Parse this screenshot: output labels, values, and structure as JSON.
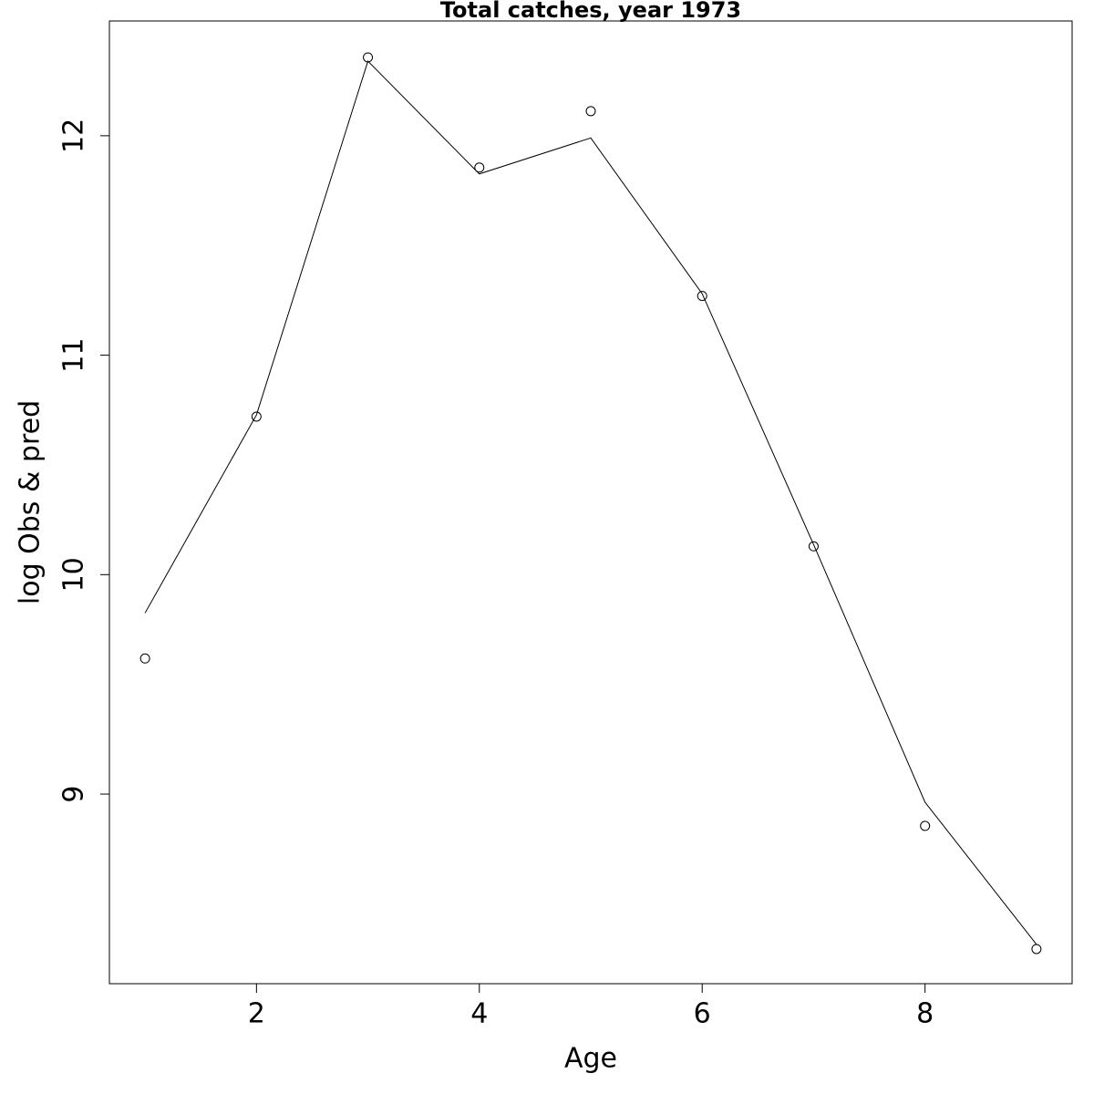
{
  "chart_data": {
    "type": "line",
    "title": "Total catches, year 1973",
    "xlabel": "Age",
    "ylabel": "log Obs & pred",
    "x": [
      1,
      2,
      3,
      4,
      5,
      6,
      7,
      8,
      9
    ],
    "series": [
      {
        "style": "points",
        "color": "#000000",
        "values": [
          9.618,
          10.72,
          12.357,
          11.855,
          12.112,
          11.27,
          10.129,
          8.855,
          8.294
        ]
      },
      {
        "style": "line",
        "color": "#000000",
        "values": [
          9.825,
          10.728,
          12.34,
          11.826,
          11.99,
          11.28,
          10.137,
          8.963,
          8.315
        ]
      }
    ],
    "xlim": [
      0.68,
      9.32
    ],
    "ylim": [
      8.136,
      12.523
    ],
    "xticks": [
      2,
      4,
      6,
      8
    ],
    "yticks": [
      9,
      10,
      11,
      12
    ],
    "grid": false
  }
}
